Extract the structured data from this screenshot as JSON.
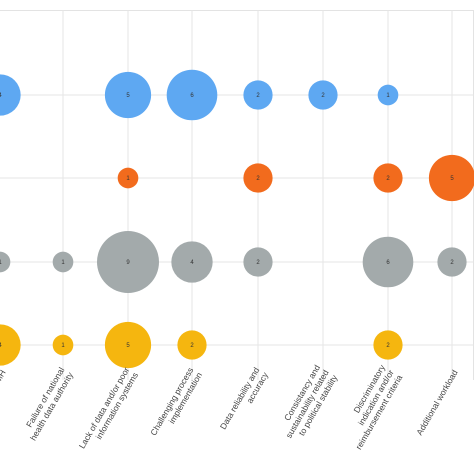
{
  "chart_data": {
    "type": "scatter",
    "categories": [
      "Workload for MH",
      "Failure of national health data authority",
      "Lack of data and/or poor information systems",
      "Challenging process implementation",
      "Data reliability and accuracy",
      "Consistancy and sustainability related to political stability",
      "Discriminatory indication and/or reimbursement criteria",
      "Additional workload"
    ],
    "category_label_visible": [
      "kload for MH",
      "Failure of national health data authority",
      "Lack of data and/or poor information systems",
      "Challenging process implementation",
      "Data reliability and accuracy",
      "Consistancy and sustainability related to political stability",
      "Discriminatory indication and/or reimbursement criteria",
      "Additional workload"
    ],
    "grid": true,
    "series": [
      {
        "color": "#5ea8f2",
        "values": [
          4,
          null,
          5,
          6,
          2,
          2,
          1,
          null
        ]
      },
      {
        "color": "#f26b1d",
        "values": [
          null,
          null,
          1,
          null,
          2,
          null,
          2,
          5
        ]
      },
      {
        "color": "#a3aaab",
        "values": [
          1,
          1,
          9,
          4,
          2,
          null,
          6,
          2
        ]
      },
      {
        "color": "#f5b60f",
        "values": [
          4,
          1,
          5,
          2,
          null,
          null,
          2,
          null
        ]
      }
    ]
  }
}
